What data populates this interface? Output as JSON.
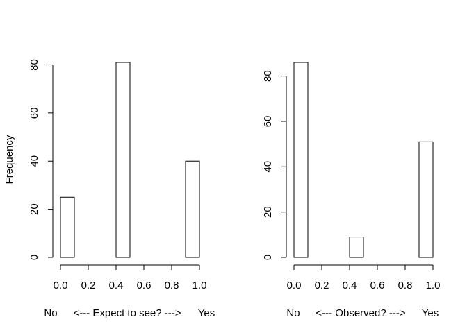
{
  "figure": {
    "ylabel": "Frequency"
  },
  "chart_data": [
    {
      "type": "bar",
      "title": "",
      "xlabel": "No    <--- Expect to see? --->    Yes",
      "xlabel_parts": {
        "left": "No",
        "middle": "<--- Expect to see? --->",
        "right": "Yes"
      },
      "ylabel": "Frequency",
      "bin_edges": [
        0.0,
        0.1,
        0.2,
        0.3,
        0.4,
        0.5,
        0.6,
        0.7,
        0.8,
        0.9,
        1.0
      ],
      "values": [
        25,
        0,
        0,
        0,
        81,
        0,
        0,
        0,
        0,
        40
      ],
      "xlim": [
        0,
        1
      ],
      "ylim": [
        0,
        81
      ],
      "xticks": [
        "0.0",
        "0.2",
        "0.4",
        "0.6",
        "0.8",
        "1.0"
      ],
      "yticks": [
        "0",
        "20",
        "40",
        "60",
        "80"
      ],
      "grid": false
    },
    {
      "type": "bar",
      "title": "",
      "xlabel": "No    <--- Observed? --->    Yes",
      "xlabel_parts": {
        "left": "No",
        "middle": "<--- Observed? --->",
        "right": "Yes"
      },
      "ylabel": "",
      "bin_edges": [
        0.0,
        0.1,
        0.2,
        0.3,
        0.4,
        0.5,
        0.6,
        0.7,
        0.8,
        0.9,
        1.0
      ],
      "values": [
        86,
        0,
        0,
        0,
        9,
        0,
        0,
        0,
        0,
        51
      ],
      "xlim": [
        0,
        1
      ],
      "ylim": [
        0,
        86
      ],
      "xticks": [
        "0.0",
        "0.2",
        "0.4",
        "0.6",
        "0.8",
        "1.0"
      ],
      "yticks": [
        "0",
        "20",
        "40",
        "60",
        "80"
      ],
      "grid": false
    }
  ]
}
